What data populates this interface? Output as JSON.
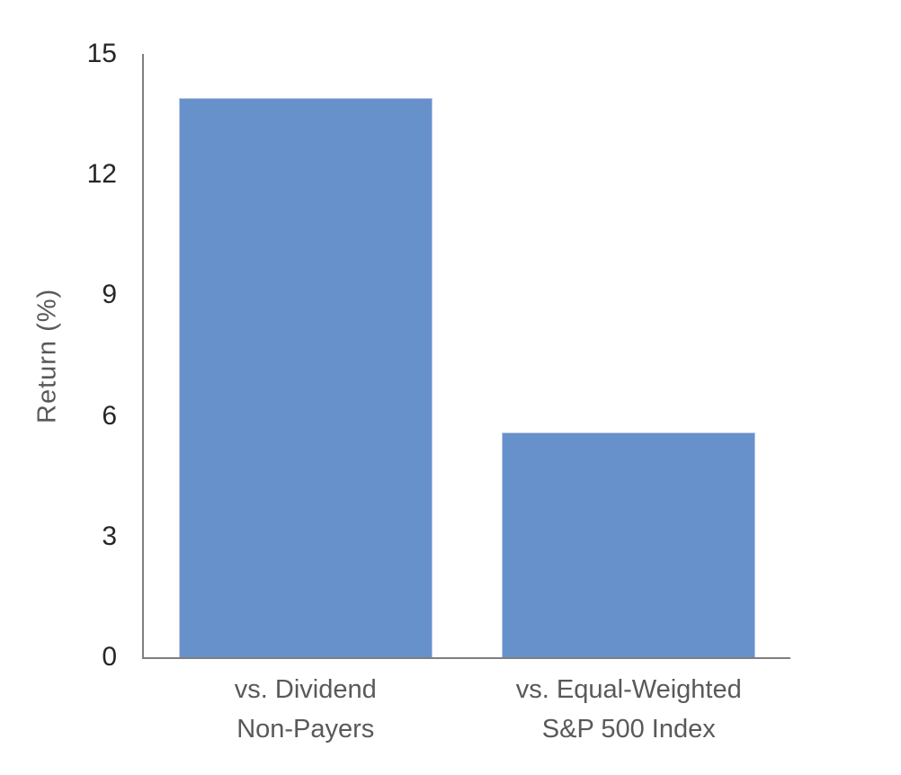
{
  "chart_data": {
    "type": "bar",
    "title": "",
    "xlabel": "",
    "ylabel": "Return (%)",
    "categories": [
      "vs. Dividend\nNon-Payers",
      "vs. Equal-Weighted\nS&P 500 Index"
    ],
    "values": [
      13.9,
      5.6
    ],
    "ylim": [
      0,
      15
    ],
    "yticks": [
      0,
      3,
      6,
      9,
      12,
      15
    ],
    "grid": "off",
    "legend": "none",
    "bar_orientation": "vertical"
  },
  "colors": {
    "bar": "#6791ca",
    "bar_edge": "#bcc9e8",
    "axis_line": "#7f7f7f",
    "tick_label": "#262626",
    "category_label": "#595959",
    "axis_title": "#595959",
    "background": "#ffffff"
  }
}
